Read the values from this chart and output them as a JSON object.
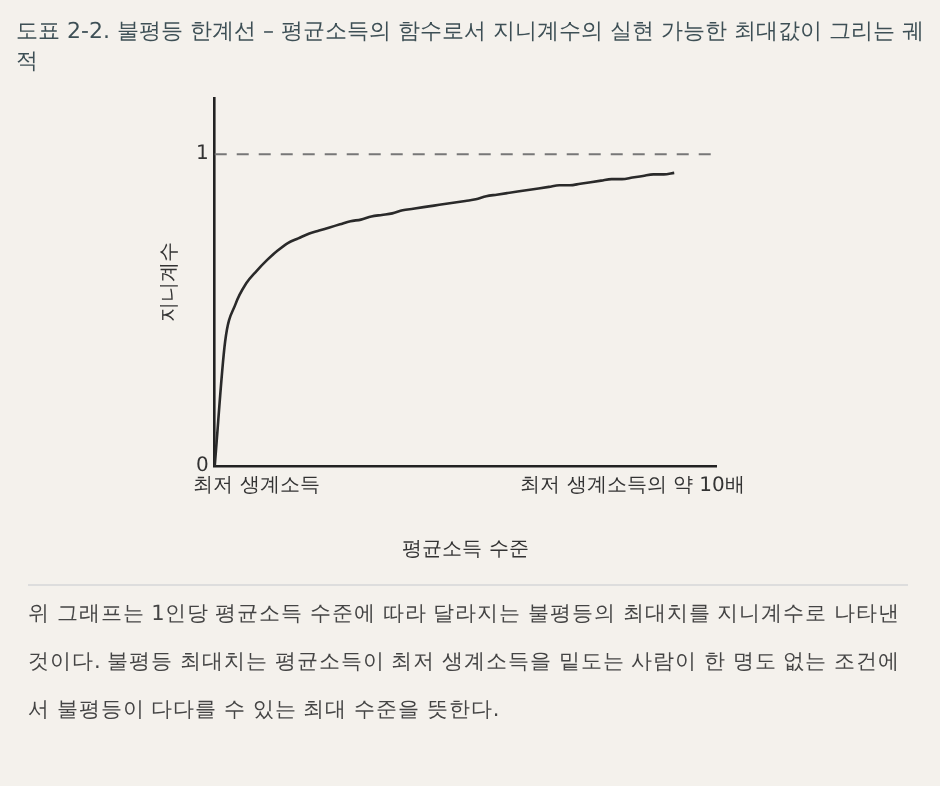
{
  "chart_data": {
    "type": "line",
    "title": "도표 2-2. 불평등 한계선 – 평균소득의 함수로서 지니계수의 실현 가능한 최대값이 그리는 궤적",
    "xlabel": "평균소득 수준",
    "ylabel": "지니계수",
    "categories": [
      null,
      null,
      null,
      null,
      "최저 생계소득",
      null,
      null,
      null,
      null,
      null,
      null,
      null,
      null,
      null,
      null,
      null,
      null,
      null,
      null,
      null,
      null,
      null,
      null,
      null,
      null,
      null,
      null,
      null,
      null,
      null,
      null,
      null,
      null,
      null,
      null,
      null,
      null,
      null,
      null,
      null,
      "최저 생계소득의 약 10배",
      null,
      null,
      null,
      null,
      null,
      null,
      null,
      null
    ],
    "series": [
      {
        "color": "#2a2a2a",
        "values": [
          0,
          0.4,
          0.52,
          0.585,
          0.625,
          0.66,
          0.69,
          0.715,
          0.73,
          0.745,
          0.755,
          0.765,
          0.775,
          0.785,
          0.79,
          0.8,
          0.805,
          0.81,
          0.82,
          0.825,
          0.83,
          0.835,
          0.84,
          0.845,
          0.85,
          0.855,
          0.865,
          0.87,
          0.875,
          0.88,
          0.885,
          0.89,
          0.895,
          0.9,
          0.9,
          0.905,
          0.91,
          0.915,
          0.92,
          0.92,
          0.925,
          0.93,
          0.935,
          0.935,
          0.94,
          null,
          null,
          null,
          null
        ]
      }
    ],
    "ylim": [
      0,
      1.18
    ],
    "yticks": [
      0,
      1
    ],
    "ref_lines": [
      {
        "axis": "y",
        "value": 1,
        "color": "#777777",
        "line_style": "dashed"
      }
    ],
    "grid": false,
    "legend": false,
    "marker": "none",
    "line_style": "solid",
    "annotations": [
      "위 그래프는 1인당 평균소득 수준에 따라 달라지는 불평등의 최대치를 지니계수로 나타낸 것이다. 불평등 최대치는 평균소득이 최저 생계소득을 밑도는 사람이 한 명도 없는 조건에서 불평등이 다다를 수 있는 최대 수준을 뜻한다."
    ]
  }
}
